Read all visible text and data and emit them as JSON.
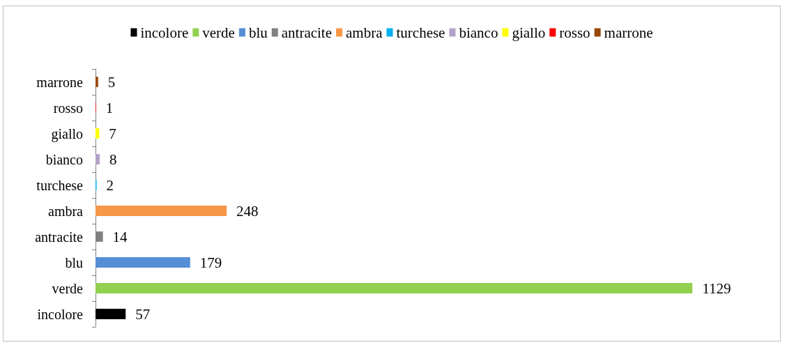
{
  "chart_data": {
    "type": "bar",
    "orientation": "horizontal",
    "categories": [
      "marrone",
      "rosso",
      "giallo",
      "bianco",
      "turchese",
      "ambra",
      "antracite",
      "blu",
      "verde",
      "incolore"
    ],
    "series": [
      {
        "name": "incolore",
        "color": "#000000",
        "values": [
          null,
          null,
          null,
          null,
          null,
          null,
          null,
          null,
          null,
          57
        ]
      },
      {
        "name": "verde",
        "color": "#92d050",
        "values": [
          null,
          null,
          null,
          null,
          null,
          null,
          null,
          null,
          1129,
          null
        ]
      },
      {
        "name": "blu",
        "color": "#558ed5",
        "values": [
          null,
          null,
          null,
          null,
          null,
          null,
          null,
          179,
          null,
          null
        ]
      },
      {
        "name": "antracite",
        "color": "#808080",
        "values": [
          null,
          null,
          null,
          null,
          null,
          null,
          14,
          null,
          null,
          null
        ]
      },
      {
        "name": "ambra",
        "color": "#f79646",
        "values": [
          null,
          null,
          null,
          null,
          null,
          248,
          null,
          null,
          null,
          null
        ]
      },
      {
        "name": "turchese",
        "color": "#00b0f0",
        "values": [
          null,
          null,
          null,
          null,
          2,
          null,
          null,
          null,
          null,
          null
        ]
      },
      {
        "name": "bianco",
        "color": "#b3a2c7",
        "values": [
          null,
          null,
          null,
          8,
          null,
          null,
          null,
          null,
          null,
          null
        ]
      },
      {
        "name": "giallo",
        "color": "#ffff00",
        "values": [
          null,
          null,
          7,
          null,
          null,
          null,
          null,
          null,
          null,
          null
        ]
      },
      {
        "name": "rosso",
        "color": "#ff0000",
        "values": [
          null,
          1,
          null,
          null,
          null,
          null,
          null,
          null,
          null,
          null
        ]
      },
      {
        "name": "marrone",
        "color": "#974706",
        "values": [
          5,
          null,
          null,
          null,
          null,
          null,
          null,
          null,
          null,
          null
        ]
      }
    ],
    "data_labels": true,
    "legend": "top",
    "grid": false
  }
}
